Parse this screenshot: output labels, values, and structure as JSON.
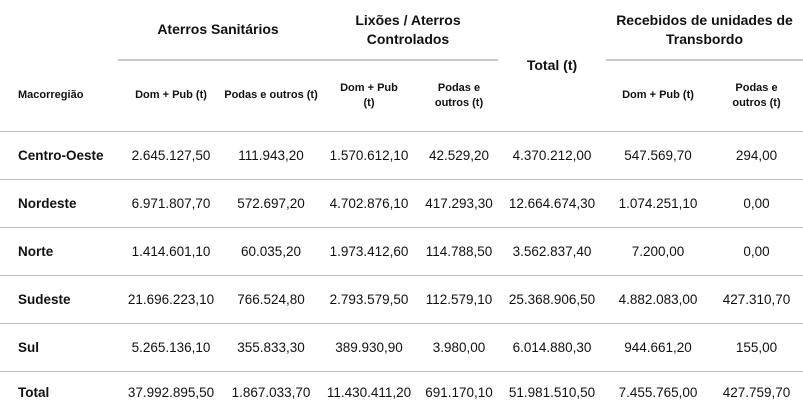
{
  "header": {
    "groups": [
      {
        "label": "Aterros Sanitários"
      },
      {
        "label": "Lixões / Aterros Controlados"
      },
      {
        "label": "Total (t)"
      },
      {
        "label": "Recebidos de unidades de Transbordo"
      }
    ],
    "macro_label": "Macorregião",
    "sub_columns": [
      "Dom + Pub (t)",
      "Podas e outros (t)",
      "Dom + Pub (t)",
      "Podas e outros (t)",
      "Dom + Pub (t)",
      "Podas e outros (t)"
    ]
  },
  "rows": [
    {
      "region": "Centro-Oeste",
      "values": [
        "2.645.127,50",
        "111.943,20",
        "1.570.612,10",
        "42.529,20",
        "4.370.212,00",
        "547.569,70",
        "294,00"
      ]
    },
    {
      "region": "Nordeste",
      "values": [
        "6.971.807,70",
        "572.697,20",
        "4.702.876,10",
        "417.293,30",
        "12.664.674,30",
        "1.074.251,10",
        "0,00"
      ]
    },
    {
      "region": "Norte",
      "values": [
        "1.414.601,10",
        "60.035,20",
        "1.973.412,60",
        "114.788,50",
        "3.562.837,40",
        "7.200,00",
        "0,00"
      ]
    },
    {
      "region": "Sudeste",
      "values": [
        "21.696.223,10",
        "766.524,80",
        "2.793.579,50",
        "112.579,10",
        "25.368.906,50",
        "4.882.083,00",
        "427.310,70"
      ]
    },
    {
      "region": "Sul",
      "values": [
        "5.265.136,10",
        "355.833,30",
        "389.930,90",
        "3.980,00",
        "6.014.880,30",
        "944.661,20",
        "155,00"
      ]
    },
    {
      "region": "Total",
      "values": [
        "37.992.895,50",
        "1.867.033,70",
        "11.430.411,20",
        "691.170,10",
        "51.981.510,50",
        "7.455.765,00",
        "427.759,70"
      ]
    }
  ]
}
